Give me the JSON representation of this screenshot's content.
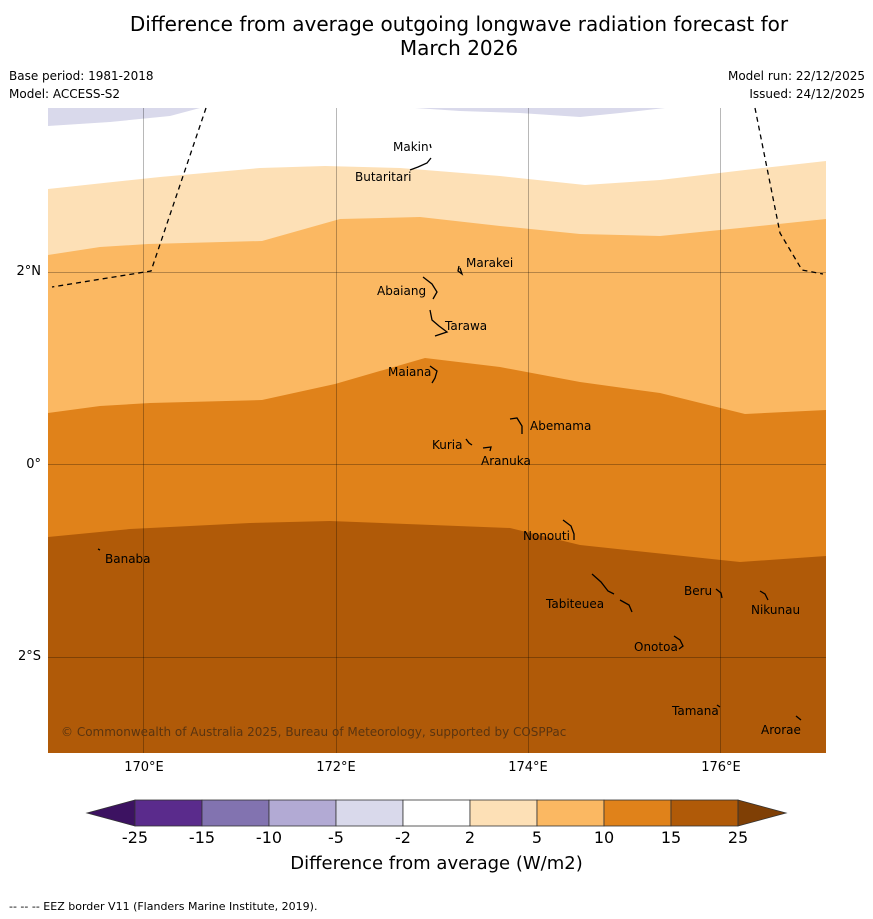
{
  "title_line1": "Difference from average outgoing longwave radiation forecast for",
  "title_line2": "March 2026",
  "base_period": "Base period: 1981-2018",
  "model": "Model: ACCESS-S2",
  "model_run": "Model run: 22/12/2025",
  "issued": "Issued: 24/12/2025",
  "copyright": "© Commonwealth of Australia 2025, Bureau of Meteorology, supported by COSPPac",
  "lon_labels": [
    "170°E",
    "172°E",
    "174°E",
    "176°E"
  ],
  "lat_labels": [
    "2°N",
    "0°",
    "2°S"
  ],
  "islands": [
    {
      "name": "Makin"
    },
    {
      "name": "Butaritari"
    },
    {
      "name": "Marakei"
    },
    {
      "name": "Abaiang"
    },
    {
      "name": "Tarawa"
    },
    {
      "name": "Maiana"
    },
    {
      "name": "Abemama"
    },
    {
      "name": "Kuria"
    },
    {
      "name": "Aranuka"
    },
    {
      "name": "Nonouti"
    },
    {
      "name": "Banaba"
    },
    {
      "name": "Beru"
    },
    {
      "name": "Tabiteuea"
    },
    {
      "name": "Nikunau"
    },
    {
      "name": "Onotoa"
    },
    {
      "name": "Tamana"
    },
    {
      "name": "Arorae"
    }
  ],
  "colorbar": {
    "ticks": [
      "-25",
      "-15",
      "-10",
      "-5",
      "-2",
      "2",
      "5",
      "10",
      "15",
      "25"
    ],
    "colors": [
      "#3c1261",
      "#5a2b8c",
      "#8273b0",
      "#b2aad4",
      "#d9d9eb",
      "#ffffff",
      "#fde0b6",
      "#fbb862",
      "#e0821a",
      "#b05a08",
      "#7f3f05"
    ],
    "title": "Difference from average (W/m2)"
  },
  "footnote": "--  --  -- EEZ border V11 (Flanders Marine Institute, 2019)."
}
